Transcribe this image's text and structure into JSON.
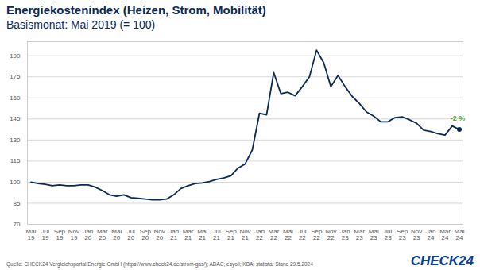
{
  "chart_data": {
    "type": "line",
    "title": "Energiekostenindex (Heizen, Strom, Mobilität)",
    "subtitle": "Basismonat: Mai 2019 (= 100)",
    "source": "Quelle: CHECK24 Vergleichsportal Energie GmbH (https://www.check24.de/strom-gas/); ADAC; esyoil; KBA; statista; Stand 29.5.2024",
    "logo": "CHECK24",
    "categories": [
      "Mai 19",
      null,
      "Jul 19",
      null,
      "Sep 19",
      null,
      "Nov 19",
      null,
      "Jan 20",
      null,
      "Mär 20",
      null,
      "Mai 20",
      null,
      "Jul 20",
      null,
      "Sep 20",
      null,
      "Nov 20",
      null,
      "Jan 21",
      null,
      "Mär 21",
      null,
      "Mai 21",
      null,
      "Jul 21",
      null,
      "Sep 21",
      null,
      "Nov 21",
      null,
      "Jan 22",
      null,
      "Mär 22",
      null,
      "Mai 22",
      null,
      "Jul 22",
      null,
      "Sep 22",
      null,
      "Nov 22",
      null,
      "Jan 23",
      null,
      "Mär 23",
      null,
      "Mai 23",
      null,
      "Jul 23",
      null,
      "Sep 23",
      null,
      "Nov 23",
      null,
      "Jan 24",
      null,
      "Mär 24",
      null,
      "Mai 24"
    ],
    "values": [
      100,
      99,
      98.5,
      97.5,
      98,
      97.5,
      97.5,
      98,
      98,
      96.5,
      94,
      91,
      90,
      91,
      89,
      88.5,
      88,
      87.5,
      87.5,
      88,
      91,
      95.5,
      97.5,
      99,
      99.5,
      100.5,
      102,
      103,
      104.5,
      110,
      113,
      123,
      149,
      148,
      178,
      163,
      164,
      161.5,
      168,
      175,
      194,
      185,
      168,
      176,
      168,
      161,
      156,
      150,
      147,
      143,
      143,
      146,
      146.5,
      144.5,
      142,
      137,
      136,
      134.5,
      133.5,
      140,
      137.5
    ],
    "color": "#0a2a55",
    "ylim": [
      70,
      200
    ],
    "yticks": [
      70,
      85,
      100,
      115,
      130,
      145,
      160,
      175,
      190
    ],
    "grid": true,
    "annotations": [
      {
        "text": "-2 %",
        "color": "#5aa02c"
      }
    ]
  }
}
